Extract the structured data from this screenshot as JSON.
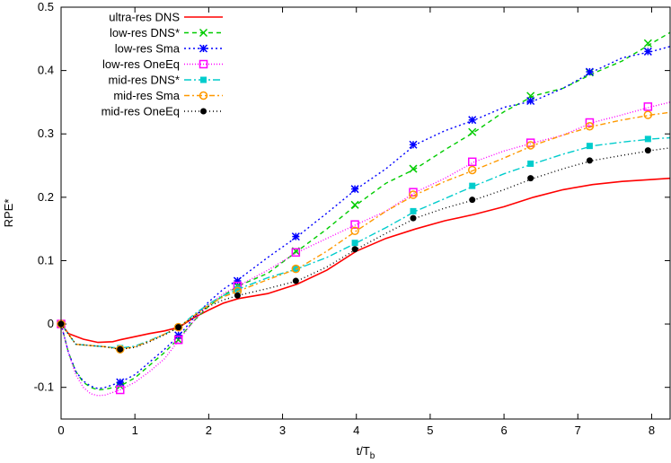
{
  "chart_data": {
    "type": "line",
    "xlabel": "t/T",
    "xlabel_sub": "b",
    "ylabel": "RPE*",
    "xlim": [
      0,
      8.25
    ],
    "ylim": [
      -0.15,
      0.5
    ],
    "xticks": [
      0,
      1,
      2,
      3,
      4,
      5,
      6,
      7,
      8
    ],
    "yticks": [
      -0.1,
      0,
      0.1,
      0.2,
      0.3,
      0.4,
      0.5
    ],
    "ytick_labels": [
      "-0.1",
      "0",
      "0.1",
      "0.2",
      "0.3",
      "0.4",
      "0.5"
    ],
    "grid": false,
    "legend_position": "top-left",
    "series": [
      {
        "name": "ultra-res DNS",
        "color": "#ff0000",
        "dash": "solid",
        "marker": "none",
        "x": [
          0,
          0.1,
          0.3,
          0.5,
          0.7,
          0.8,
          1.0,
          1.2,
          1.4,
          1.6,
          1.8,
          2.0,
          2.2,
          2.4,
          2.8,
          3.2,
          3.6,
          4.0,
          4.4,
          4.8,
          5.2,
          5.6,
          6.0,
          6.4,
          6.8,
          7.2,
          7.6,
          8.0,
          8.25
        ],
        "y": [
          0,
          -0.015,
          -0.024,
          -0.029,
          -0.028,
          -0.025,
          -0.02,
          -0.015,
          -0.011,
          -0.005,
          0.01,
          0.022,
          0.033,
          0.04,
          0.048,
          0.063,
          0.085,
          0.115,
          0.135,
          0.15,
          0.163,
          0.173,
          0.185,
          0.2,
          0.212,
          0.22,
          0.225,
          0.228,
          0.23
        ],
        "marker_x": [],
        "marker_y": []
      },
      {
        "name": "low-res DNS*",
        "color": "#00cc00",
        "dash": "5,4",
        "marker": "x",
        "x": [
          0,
          0.1,
          0.2,
          0.3,
          0.4,
          0.5,
          0.6,
          0.8,
          1.0,
          1.2,
          1.4,
          1.6,
          1.8,
          2.0,
          2.2,
          2.4,
          2.8,
          3.2,
          3.6,
          4.0,
          4.4,
          4.8,
          5.2,
          5.6,
          6.0,
          6.4,
          6.8,
          7.2,
          7.6,
          8.0,
          8.25
        ],
        "y": [
          0,
          -0.045,
          -0.075,
          -0.092,
          -0.1,
          -0.104,
          -0.103,
          -0.098,
          -0.085,
          -0.065,
          -0.045,
          -0.022,
          0.005,
          0.028,
          0.045,
          0.06,
          0.08,
          0.115,
          0.15,
          0.188,
          0.222,
          0.245,
          0.275,
          0.303,
          0.335,
          0.36,
          0.372,
          0.395,
          0.415,
          0.443,
          0.46
        ],
        "marker_x": [
          0,
          0.8,
          1.59,
          2.39,
          3.18,
          3.98,
          4.77,
          5.57,
          6.36,
          7.16,
          7.95
        ],
        "marker_y": [
          0,
          -0.098,
          -0.025,
          0.06,
          0.115,
          0.188,
          0.245,
          0.303,
          0.36,
          0.397,
          0.443
        ]
      },
      {
        "name": "low-res Sma",
        "color": "#0000ff",
        "dash": "2,3",
        "marker": "star",
        "x": [
          0,
          0.1,
          0.2,
          0.3,
          0.4,
          0.5,
          0.6,
          0.8,
          1.0,
          1.2,
          1.4,
          1.6,
          1.8,
          2.0,
          2.2,
          2.4,
          2.8,
          3.2,
          3.6,
          4.0,
          4.4,
          4.8,
          5.2,
          5.6,
          6.0,
          6.4,
          6.8,
          7.2,
          7.6,
          8.0,
          8.25
        ],
        "y": [
          0,
          -0.045,
          -0.075,
          -0.09,
          -0.098,
          -0.102,
          -0.1,
          -0.092,
          -0.08,
          -0.06,
          -0.04,
          -0.018,
          0.01,
          0.035,
          0.055,
          0.07,
          0.105,
          0.138,
          0.175,
          0.213,
          0.245,
          0.283,
          0.305,
          0.322,
          0.342,
          0.352,
          0.372,
          0.398,
          0.42,
          0.43,
          0.438
        ],
        "marker_x": [
          0,
          0.8,
          1.59,
          2.39,
          3.18,
          3.98,
          4.77,
          5.57,
          6.36,
          7.16,
          7.95
        ],
        "marker_y": [
          0,
          -0.092,
          -0.018,
          0.068,
          0.138,
          0.213,
          0.283,
          0.322,
          0.352,
          0.398,
          0.43
        ]
      },
      {
        "name": "low-res OneEq",
        "color": "#ff00ff",
        "dash": "1,2",
        "marker": "square-open",
        "x": [
          0,
          0.1,
          0.2,
          0.3,
          0.4,
          0.5,
          0.6,
          0.8,
          1.0,
          1.2,
          1.4,
          1.6,
          1.8,
          2.0,
          2.2,
          2.4,
          2.8,
          3.2,
          3.6,
          4.0,
          4.4,
          4.8,
          5.2,
          5.6,
          6.0,
          6.4,
          6.8,
          7.2,
          7.6,
          8.0,
          8.25
        ],
        "y": [
          0,
          -0.045,
          -0.08,
          -0.1,
          -0.11,
          -0.113,
          -0.112,
          -0.104,
          -0.092,
          -0.075,
          -0.055,
          -0.025,
          0.005,
          0.03,
          0.048,
          0.06,
          0.085,
          0.113,
          0.135,
          0.157,
          0.178,
          0.208,
          0.23,
          0.256,
          0.273,
          0.286,
          0.298,
          0.318,
          0.33,
          0.343,
          0.35
        ],
        "marker_x": [
          0,
          0.8,
          1.59,
          2.39,
          3.18,
          3.98,
          4.77,
          5.57,
          6.36,
          7.16,
          7.95
        ],
        "marker_y": [
          0,
          -0.104,
          -0.025,
          0.06,
          0.113,
          0.157,
          0.208,
          0.256,
          0.286,
          0.318,
          0.343
        ]
      },
      {
        "name": "mid-res DNS*",
        "color": "#00cccc",
        "dash": "8,3,2,3",
        "marker": "square-filled",
        "x": [
          0,
          0.2,
          0.4,
          0.6,
          0.8,
          1.0,
          1.2,
          1.4,
          1.6,
          1.8,
          2.0,
          2.2,
          2.4,
          2.8,
          3.2,
          3.6,
          4.0,
          4.4,
          4.8,
          5.2,
          5.6,
          6.0,
          6.4,
          6.8,
          7.2,
          7.6,
          8.0,
          8.25
        ],
        "y": [
          0,
          -0.032,
          -0.034,
          -0.036,
          -0.038,
          -0.035,
          -0.026,
          -0.016,
          -0.005,
          0.015,
          0.032,
          0.045,
          0.055,
          0.073,
          0.087,
          0.105,
          0.128,
          0.152,
          0.178,
          0.198,
          0.218,
          0.237,
          0.253,
          0.268,
          0.281,
          0.287,
          0.292,
          0.294
        ],
        "marker_x": [
          0,
          0.8,
          1.59,
          2.39,
          3.18,
          3.98,
          4.77,
          5.57,
          6.36,
          7.16,
          7.95
        ],
        "marker_y": [
          0,
          -0.038,
          -0.005,
          0.055,
          0.087,
          0.128,
          0.178,
          0.218,
          0.253,
          0.281,
          0.292
        ]
      },
      {
        "name": "mid-res Sma",
        "color": "#ff9900",
        "dash": "6,3,2,3",
        "marker": "circle-open",
        "x": [
          0,
          0.2,
          0.4,
          0.6,
          0.8,
          1.0,
          1.2,
          1.4,
          1.6,
          1.8,
          2.0,
          2.2,
          2.4,
          2.8,
          3.2,
          3.6,
          4.0,
          4.4,
          4.8,
          5.2,
          5.6,
          6.0,
          6.4,
          6.8,
          7.2,
          7.6,
          8.0,
          8.25
        ],
        "y": [
          0,
          -0.032,
          -0.034,
          -0.036,
          -0.04,
          -0.036,
          -0.027,
          -0.016,
          -0.005,
          0.013,
          0.03,
          0.043,
          0.052,
          0.07,
          0.087,
          0.115,
          0.147,
          0.178,
          0.204,
          0.225,
          0.243,
          0.262,
          0.282,
          0.298,
          0.312,
          0.322,
          0.33,
          0.334
        ],
        "marker_x": [
          0,
          0.8,
          1.59,
          2.39,
          3.18,
          3.98,
          4.77,
          5.57,
          6.36,
          7.16,
          7.95
        ],
        "marker_y": [
          0,
          -0.04,
          -0.005,
          0.052,
          0.087,
          0.147,
          0.204,
          0.243,
          0.282,
          0.312,
          0.33
        ]
      },
      {
        "name": "mid-res OneEq",
        "color": "#000000",
        "dash": "1,3",
        "marker": "circle-filled",
        "x": [
          0,
          0.2,
          0.4,
          0.6,
          0.8,
          1.0,
          1.2,
          1.4,
          1.6,
          1.8,
          2.0,
          2.2,
          2.4,
          2.8,
          3.2,
          3.6,
          4.0,
          4.4,
          4.8,
          5.2,
          5.6,
          6.0,
          6.4,
          6.8,
          7.2,
          7.6,
          8.0,
          8.25
        ],
        "y": [
          0,
          -0.032,
          -0.034,
          -0.036,
          -0.04,
          -0.037,
          -0.028,
          -0.017,
          -0.005,
          0.012,
          0.028,
          0.038,
          0.045,
          0.056,
          0.068,
          0.09,
          0.118,
          0.143,
          0.167,
          0.183,
          0.196,
          0.212,
          0.23,
          0.245,
          0.258,
          0.266,
          0.274,
          0.278
        ],
        "marker_x": [
          0,
          0.8,
          1.59,
          2.39,
          3.18,
          3.98,
          4.77,
          5.57,
          6.36,
          7.16,
          7.95
        ],
        "marker_y": [
          0,
          -0.04,
          -0.005,
          0.045,
          0.068,
          0.118,
          0.167,
          0.196,
          0.23,
          0.258,
          0.274
        ]
      }
    ]
  }
}
